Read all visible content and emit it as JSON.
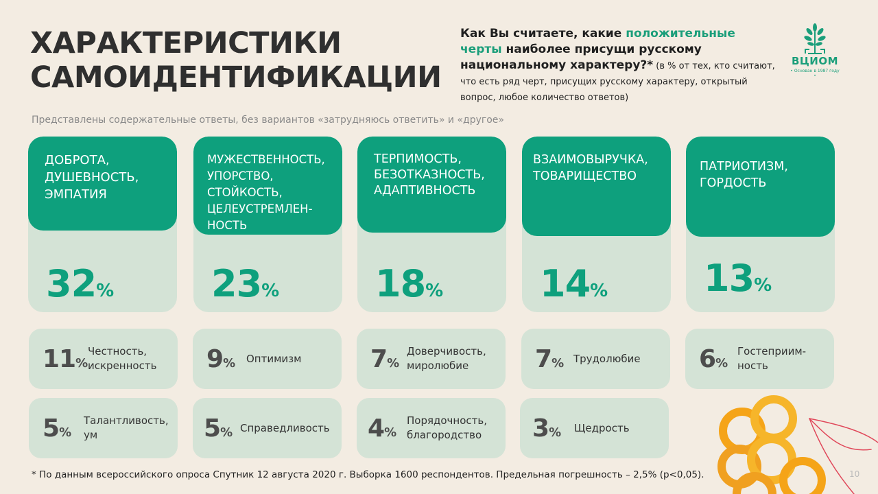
{
  "title_line1": "ХАРАКТЕРИСТИКИ",
  "title_line2": "САМОИДЕНТИФИКАЦИИ",
  "question": {
    "part1": "Как Вы считаете, какие ",
    "highlight": "положительные черты",
    "part2": " наиболее присущи русскому национальному характеру?*",
    "note": " (в % от тех, кто считают, что есть ряд черт, присущих русскому характеру, открытый вопрос, любое количество ответов)"
  },
  "logo": {
    "name": "ВЦИОМ",
    "tagline": "• Основан в 1987 году •",
    "icon": "tree-icon"
  },
  "subtitle": "Представлены содержательные ответы, без вариантов «затрудняюсь ответить» и «другое»",
  "top_cards": [
    {
      "label": "ДОБРОТА, ДУШЕВНОСТЬ, ЭМПАТИЯ",
      "value": "32",
      "pct": "%"
    },
    {
      "label": "МУЖЕСТВЕННОСТЬ, УПОРСТВО, СТОЙКОСТЬ, ЦЕЛЕУСТРЕМЛЕН-НОСТЬ",
      "value": "23",
      "pct": "%"
    },
    {
      "label": "ТЕРПИМОСТЬ, БЕЗОТКАЗНОСТЬ, АДАПТИВНОСТЬ",
      "value": "18",
      "pct": "%"
    },
    {
      "label": "ВЗАИМОВЫРУЧКА, ТОВАРИЩЕСТВО",
      "value": "14",
      "pct": "%"
    },
    {
      "label": "ПАТРИОТИЗМ, ГОРДОСТЬ",
      "value": "13",
      "pct": "%"
    }
  ],
  "small_cards": [
    {
      "value": "11",
      "pct": "%",
      "label": "Честность, искренность"
    },
    {
      "value": "9",
      "pct": "%",
      "label": "Оптимизм"
    },
    {
      "value": "7",
      "pct": "%",
      "label": "Доверчивость, миролюбие"
    },
    {
      "value": "7",
      "pct": "%",
      "label": "Трудолюбие"
    },
    {
      "value": "6",
      "pct": "%",
      "label": "Гостеприим-ность"
    },
    {
      "value": "5",
      "pct": "%",
      "label": "Талантливость, ум"
    },
    {
      "value": "5",
      "pct": "%",
      "label": "Справедливость"
    },
    {
      "value": "4",
      "pct": "%",
      "label": "Порядочность, благородство"
    },
    {
      "value": "3",
      "pct": "%",
      "label": "Щедрость"
    }
  ],
  "footnote": "* По данным всероссийского опроса Спутник 12 августа 2020 г. Выборка 1600 респондентов. Предельная погрешность – 2,5% (р<0,05).",
  "page_number": "10",
  "colors": {
    "accent": "#0ea07d",
    "card": "#d4e3d6",
    "background": "#f3ece2"
  }
}
